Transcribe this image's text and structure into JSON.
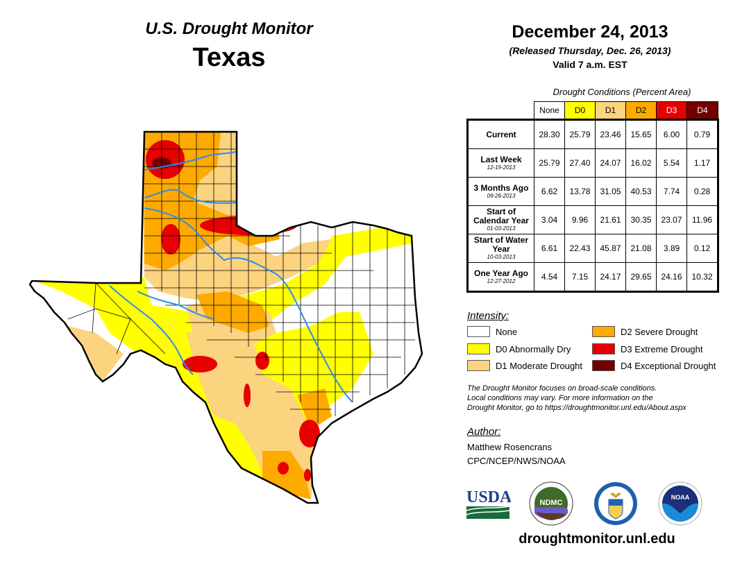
{
  "header": {
    "monitor_title": "U.S. Drought Monitor",
    "state": "Texas",
    "date": "December 24, 2013",
    "released": "(Released Thursday, Dec. 26, 2013)",
    "valid": "Valid 7 a.m. EST"
  },
  "table": {
    "caption": "Drought Conditions (Percent Area)",
    "columns": [
      {
        "label": "None",
        "color": "#ffffff",
        "text_color": "#000000"
      },
      {
        "label": "D0",
        "color": "#ffff00",
        "text_color": "#000000"
      },
      {
        "label": "D1",
        "color": "#fcd37f",
        "text_color": "#000000"
      },
      {
        "label": "D2",
        "color": "#ffaa00",
        "text_color": "#000000"
      },
      {
        "label": "D3",
        "color": "#e60000",
        "text_color": "#ffffff"
      },
      {
        "label": "D4",
        "color": "#730000",
        "text_color": "#ffffff"
      }
    ],
    "rows": [
      {
        "label": "Current",
        "date": "",
        "values": [
          "28.30",
          "25.79",
          "23.46",
          "15.65",
          "6.00",
          "0.79"
        ]
      },
      {
        "label": "Last Week",
        "date": "12-19-2013",
        "values": [
          "25.79",
          "27.40",
          "24.07",
          "16.02",
          "5.54",
          "1.17"
        ]
      },
      {
        "label": "3 Months Ago",
        "date": "09-26-2013",
        "values": [
          "6.62",
          "13.78",
          "31.05",
          "40.53",
          "7.74",
          "0.28"
        ]
      },
      {
        "label": "Start of Calendar Year",
        "date": "01-03-2013",
        "values": [
          "3.04",
          "9.96",
          "21.61",
          "30.35",
          "23.07",
          "11.96"
        ]
      },
      {
        "label": "Start of Water Year",
        "date": "10-03-2013",
        "values": [
          "6.61",
          "22.43",
          "45.87",
          "21.08",
          "3.89",
          "0.12"
        ]
      },
      {
        "label": "One Year Ago",
        "date": "12-27-2012",
        "values": [
          "4.54",
          "7.15",
          "24.17",
          "29.65",
          "24.16",
          "10.32"
        ]
      }
    ]
  },
  "legend": {
    "title": "Intensity:",
    "items": [
      {
        "label": "None",
        "color": "#ffffff"
      },
      {
        "label": "D0 Abnormally Dry",
        "color": "#ffff00"
      },
      {
        "label": "D1 Moderate Drought",
        "color": "#fcd37f"
      },
      {
        "label": "D2 Severe Drought",
        "color": "#ffaa00"
      },
      {
        "label": "D3 Extreme Drought",
        "color": "#e60000"
      },
      {
        "label": "D4 Exceptional Drought",
        "color": "#730000"
      }
    ]
  },
  "disclaimer": [
    "The Drought Monitor focuses on broad-scale conditions.",
    "Local conditions may vary. For more information on the",
    "Drought Monitor, go to https://droughtmonitor.unl.edu/About.aspx"
  ],
  "author": {
    "title": "Author:",
    "name": "Matthew Rosencrans",
    "org": "CPC/NCEP/NWS/NOAA"
  },
  "logos": {
    "usda": "USDA",
    "ndmc": "NDMC",
    "noaa": "NOAA"
  },
  "footer": {
    "url": "droughtmonitor.unl.edu"
  },
  "map": {
    "region": "Texas",
    "river_color": "#2b8ce6",
    "border_color": "#000000"
  }
}
